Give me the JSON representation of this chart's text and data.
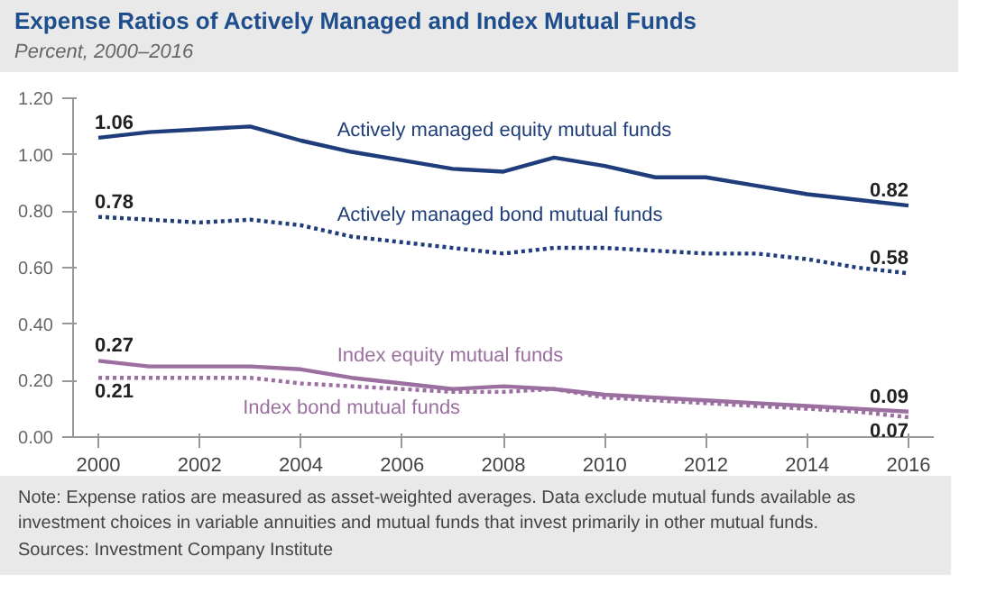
{
  "chart_data": {
    "type": "line",
    "title": "Expense Ratios of Actively Managed and Index Mutual Funds",
    "subtitle": "Percent, 2000–2016",
    "x": [
      2000,
      2001,
      2002,
      2003,
      2004,
      2005,
      2006,
      2007,
      2008,
      2009,
      2010,
      2011,
      2012,
      2013,
      2014,
      2015,
      2016
    ],
    "series": [
      {
        "name": "Actively managed equity mutual funds",
        "color": "#1f3d7a",
        "line_style": "solid",
        "values": [
          1.06,
          1.08,
          1.09,
          1.1,
          1.05,
          1.01,
          0.98,
          0.95,
          0.94,
          0.99,
          0.96,
          0.92,
          0.92,
          0.89,
          0.86,
          0.84,
          0.82
        ],
        "value_labels": [
          "1.06",
          null,
          null,
          null,
          null,
          null,
          null,
          null,
          null,
          null,
          null,
          null,
          null,
          null,
          null,
          null,
          "0.82"
        ]
      },
      {
        "name": "Actively managed bond mutual funds",
        "color": "#1f3d7a",
        "line_style": "dotted",
        "values": [
          0.78,
          0.77,
          0.76,
          0.77,
          0.75,
          0.71,
          0.69,
          0.67,
          0.65,
          0.67,
          0.67,
          0.66,
          0.65,
          0.65,
          0.63,
          0.6,
          0.58
        ],
        "value_labels": [
          "0.78",
          null,
          null,
          null,
          null,
          null,
          null,
          null,
          null,
          null,
          null,
          null,
          null,
          null,
          null,
          null,
          "0.58"
        ]
      },
      {
        "name": "Index equity mutual funds",
        "color": "#9b6fa0",
        "line_style": "solid",
        "values": [
          0.27,
          0.25,
          0.25,
          0.25,
          0.24,
          0.21,
          0.19,
          0.17,
          0.18,
          0.17,
          0.15,
          0.14,
          0.13,
          0.12,
          0.11,
          0.1,
          0.09
        ],
        "value_labels": [
          "0.27",
          null,
          null,
          null,
          null,
          null,
          null,
          null,
          null,
          null,
          null,
          null,
          null,
          null,
          null,
          null,
          "0.09"
        ]
      },
      {
        "name": "Index bond mutual funds",
        "color": "#9b6fa0",
        "line_style": "dotted",
        "values": [
          0.21,
          0.21,
          0.21,
          0.21,
          0.19,
          0.18,
          0.17,
          0.16,
          0.16,
          0.17,
          0.14,
          0.13,
          0.12,
          0.11,
          0.1,
          0.09,
          0.07
        ],
        "value_labels": [
          "0.21",
          null,
          null,
          null,
          null,
          null,
          null,
          null,
          null,
          null,
          null,
          null,
          null,
          null,
          null,
          null,
          "0.07"
        ]
      }
    ],
    "xlim": [
      1999.5,
      2016.5
    ],
    "xticks": [
      2000,
      2002,
      2004,
      2006,
      2008,
      2010,
      2012,
      2014,
      2016
    ],
    "ylim": [
      0,
      1.2
    ],
    "yticks": [
      {
        "value": 0,
        "label": "0.00"
      },
      {
        "value": 0.2,
        "label": "0.20"
      },
      {
        "value": 0.4,
        "label": "0.40"
      },
      {
        "value": 0.6,
        "label": "0.60"
      },
      {
        "value": 0.8,
        "label": "0.80"
      },
      {
        "value": 1.0,
        "label": "1.00"
      },
      {
        "value": 1.2,
        "label": "1.20"
      }
    ],
    "grid": false,
    "annotations": [
      "Note: Expense ratios are measured as asset-weighted averages. Data exclude mutual funds available as investment choices in variable annuities and mutual funds that invest primarily in other mutual funds.",
      "Sources: Investment Company Institute"
    ]
  }
}
